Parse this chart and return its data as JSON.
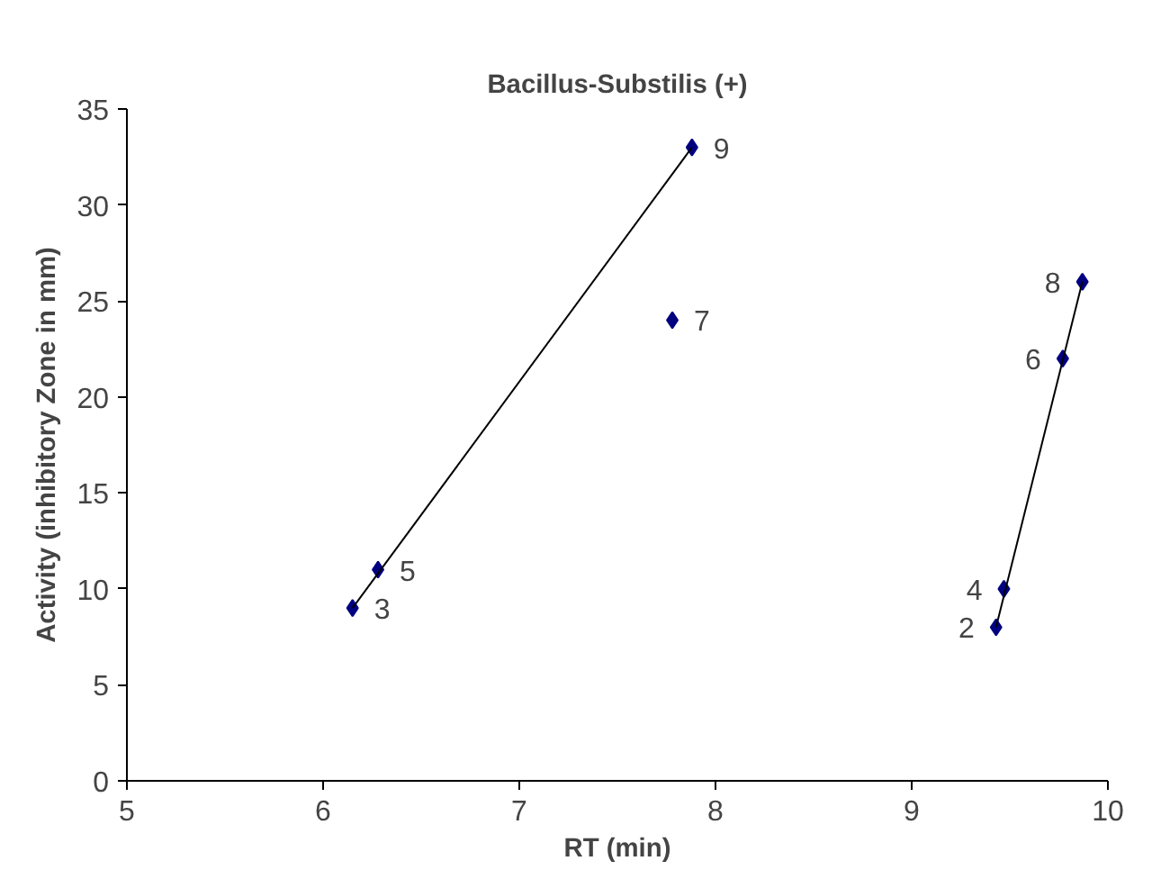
{
  "chart_data": {
    "type": "scatter",
    "title": "Bacillus-Substilis (+)",
    "xlabel": "RT (min)",
    "ylabel": "Activity (inhibitory Zone in mm)",
    "xlim": [
      5,
      10
    ],
    "xticks": [
      5,
      6,
      7,
      8,
      9,
      10
    ],
    "ylim": [
      0,
      35
    ],
    "yticks": [
      0,
      5,
      10,
      15,
      20,
      25,
      30,
      35
    ],
    "grid": false,
    "marker": "diamond",
    "series": [
      {
        "color": "#000080",
        "x": [
          6.15,
          6.28,
          7.88,
          7.78,
          9.43,
          9.47,
          9.77,
          9.87
        ],
        "values": [
          9,
          11,
          33,
          24,
          8,
          10,
          22,
          26
        ]
      },
      {
        "type": "line",
        "marker": "none",
        "color": "#000000",
        "x": [
          6.15,
          7.88
        ],
        "values": [
          9,
          33
        ]
      },
      {
        "type": "line",
        "marker": "none",
        "color": "#000000",
        "x": [
          9.43,
          9.87
        ],
        "values": [
          8,
          26
        ]
      }
    ],
    "annotations": [
      {
        "text": "3",
        "x": 6.15,
        "y": 9
      },
      {
        "text": "5",
        "x": 6.28,
        "y": 11
      },
      {
        "text": "9",
        "x": 7.88,
        "y": 33
      },
      {
        "text": "7",
        "x": 7.78,
        "y": 24
      },
      {
        "text": "2",
        "x": 9.43,
        "y": 8
      },
      {
        "text": "4",
        "x": 9.47,
        "y": 10
      },
      {
        "text": "6",
        "x": 9.77,
        "y": 22
      },
      {
        "text": "8",
        "x": 9.87,
        "y": 26
      }
    ]
  }
}
